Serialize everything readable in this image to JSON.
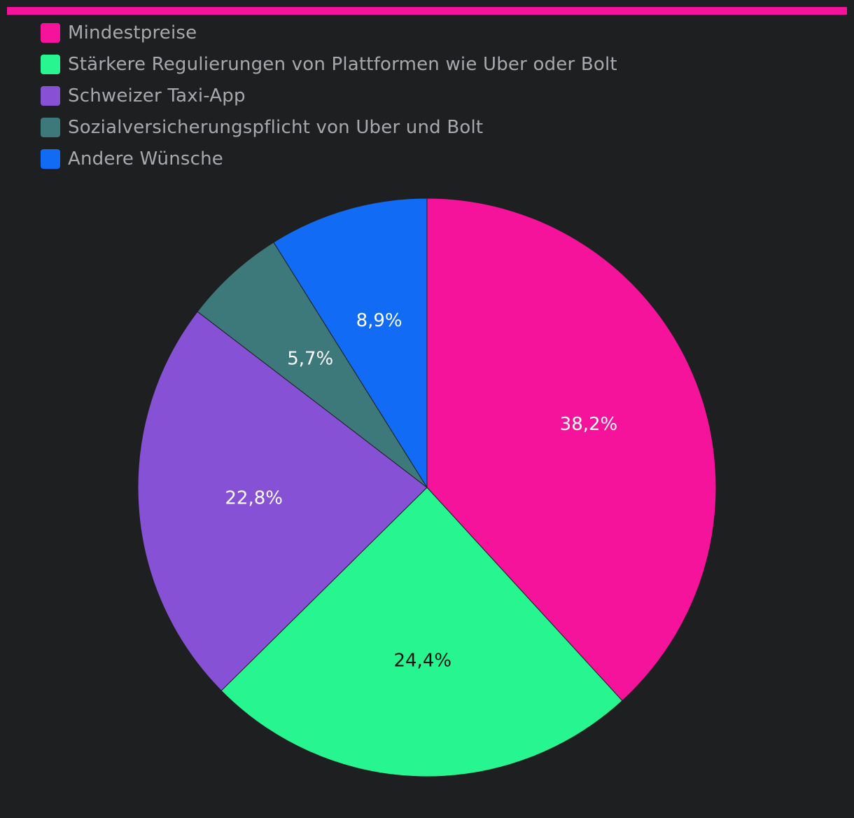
{
  "colors": {
    "background": "#1e1f21",
    "accent": "#f5139c",
    "legend_text": "#a8a9ad",
    "slice_stroke": "#1e1f21"
  },
  "chart_data": {
    "type": "pie",
    "title": "",
    "start_angle_deg": 0,
    "direction": "clockwise",
    "slices": [
      {
        "label": "Mindestpreise",
        "value": 38.2,
        "display": "38,2%",
        "color": "#f5139c",
        "label_color": "#ffffff"
      },
      {
        "label": "Stärkere Regulierungen von Plattformen wie Uber oder Bolt",
        "value": 24.4,
        "display": "24,4%",
        "color": "#27f690",
        "label_color": "#111111"
      },
      {
        "label": "Schweizer Taxi-App",
        "value": 22.8,
        "display": "22,8%",
        "color": "#8751d6",
        "label_color": "#ffffff"
      },
      {
        "label": "Sozialversicherungspflicht von Uber und Bolt",
        "value": 5.7,
        "display": "5,7%",
        "color": "#3d787a",
        "label_color": "#ffffff"
      },
      {
        "label": "Andere Wünsche",
        "value": 8.9,
        "display": "8,9%",
        "color": "#116bf4",
        "label_color": "#ffffff"
      }
    ],
    "legend_position": "top-left"
  }
}
